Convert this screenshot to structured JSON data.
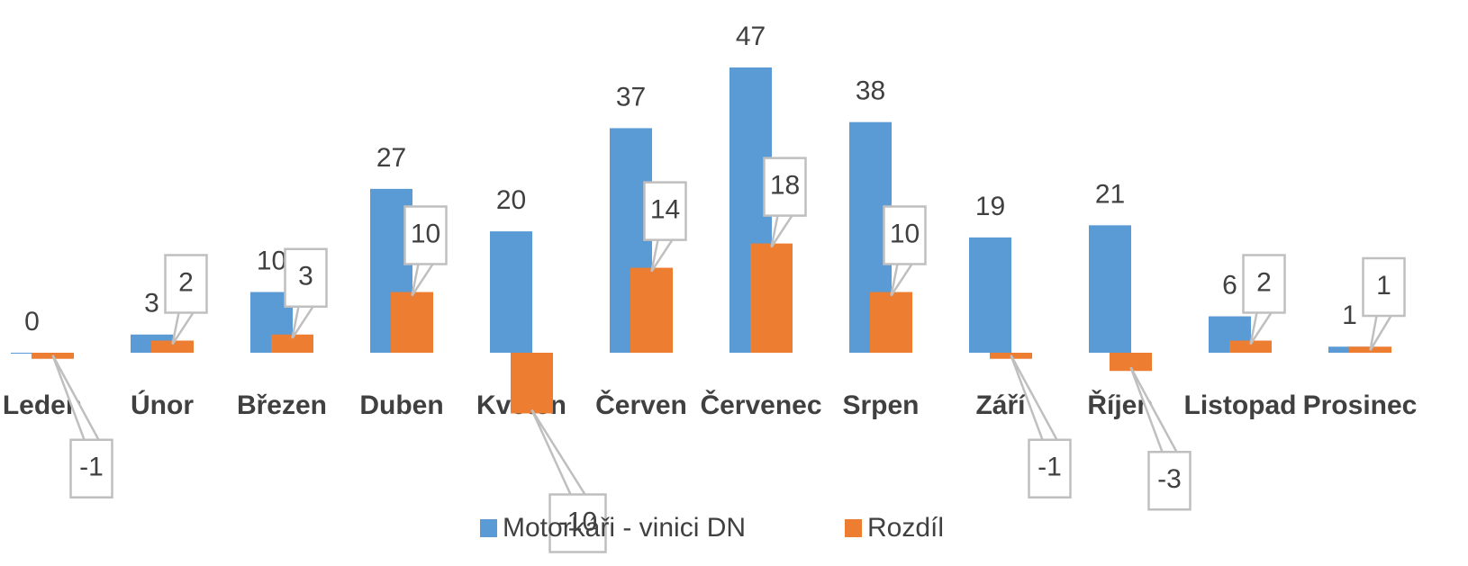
{
  "chart_data": {
    "type": "bar",
    "categories": [
      "Leden",
      "Únor",
      "Březen",
      "Duben",
      "Květen",
      "Červen",
      "Červenec",
      "Srpen",
      "Září",
      "Říjen",
      "Listopad",
      "Prosinec"
    ],
    "series": [
      {
        "name": "Motorkáři - vinici DN",
        "color": "#5b9bd5",
        "values": [
          0,
          3,
          10,
          27,
          20,
          37,
          47,
          38,
          19,
          21,
          6,
          1
        ]
      },
      {
        "name": "Rozdíl",
        "color": "#ed7d31",
        "values": [
          -1,
          2,
          3,
          10,
          -10,
          14,
          18,
          10,
          -1,
          -3,
          2,
          1
        ]
      }
    ],
    "legend": "bottom"
  }
}
